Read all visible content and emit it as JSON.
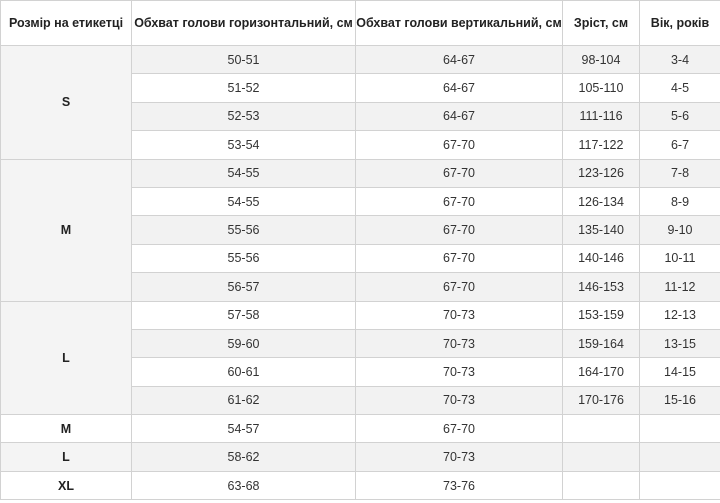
{
  "headers": [
    "Розмір на етикетці",
    "Обхват голови горизонтальний, см",
    "Обхват голови вертикальний, см",
    "Зріст, см",
    "Вік, років"
  ],
  "groups": [
    {
      "size": "S",
      "rows": [
        {
          "horizontal": "50-51",
          "vertical": "64-67",
          "height": "98-104",
          "age": "3-4"
        },
        {
          "horizontal": "51-52",
          "vertical": "64-67",
          "height": "105-110",
          "age": "4-5"
        },
        {
          "horizontal": "52-53",
          "vertical": "64-67",
          "height": "111-116",
          "age": "5-6"
        },
        {
          "horizontal": "53-54",
          "vertical": "67-70",
          "height": "117-122",
          "age": "6-7"
        }
      ]
    },
    {
      "size": "M",
      "rows": [
        {
          "horizontal": "54-55",
          "vertical": "67-70",
          "height": "123-126",
          "age": "7-8"
        },
        {
          "horizontal": "54-55",
          "vertical": "67-70",
          "height": "126-134",
          "age": "8-9"
        },
        {
          "horizontal": "55-56",
          "vertical": "67-70",
          "height": "135-140",
          "age": "9-10"
        },
        {
          "horizontal": "55-56",
          "vertical": "67-70",
          "height": "140-146",
          "age": "10-11"
        },
        {
          "horizontal": "56-57",
          "vertical": "67-70",
          "height": "146-153",
          "age": "11-12"
        }
      ]
    },
    {
      "size": "L",
      "rows": [
        {
          "horizontal": "57-58",
          "vertical": "70-73",
          "height": "153-159",
          "age": "12-13"
        },
        {
          "horizontal": "59-60",
          "vertical": "70-73",
          "height": "159-164",
          "age": "13-15"
        },
        {
          "horizontal": "60-61",
          "vertical": "70-73",
          "height": "164-170",
          "age": "14-15"
        },
        {
          "horizontal": "61-62",
          "vertical": "70-73",
          "height": "170-176",
          "age": "15-16"
        }
      ]
    },
    {
      "size": "M",
      "rows": [
        {
          "horizontal": "54-57",
          "vertical": "67-70",
          "height": "",
          "age": ""
        }
      ]
    },
    {
      "size": "L",
      "rows": [
        {
          "horizontal": "58-62",
          "vertical": "70-73",
          "height": "",
          "age": ""
        }
      ]
    },
    {
      "size": "XL",
      "rows": [
        {
          "horizontal": "63-68",
          "vertical": "73-76",
          "height": "",
          "age": ""
        }
      ]
    }
  ]
}
